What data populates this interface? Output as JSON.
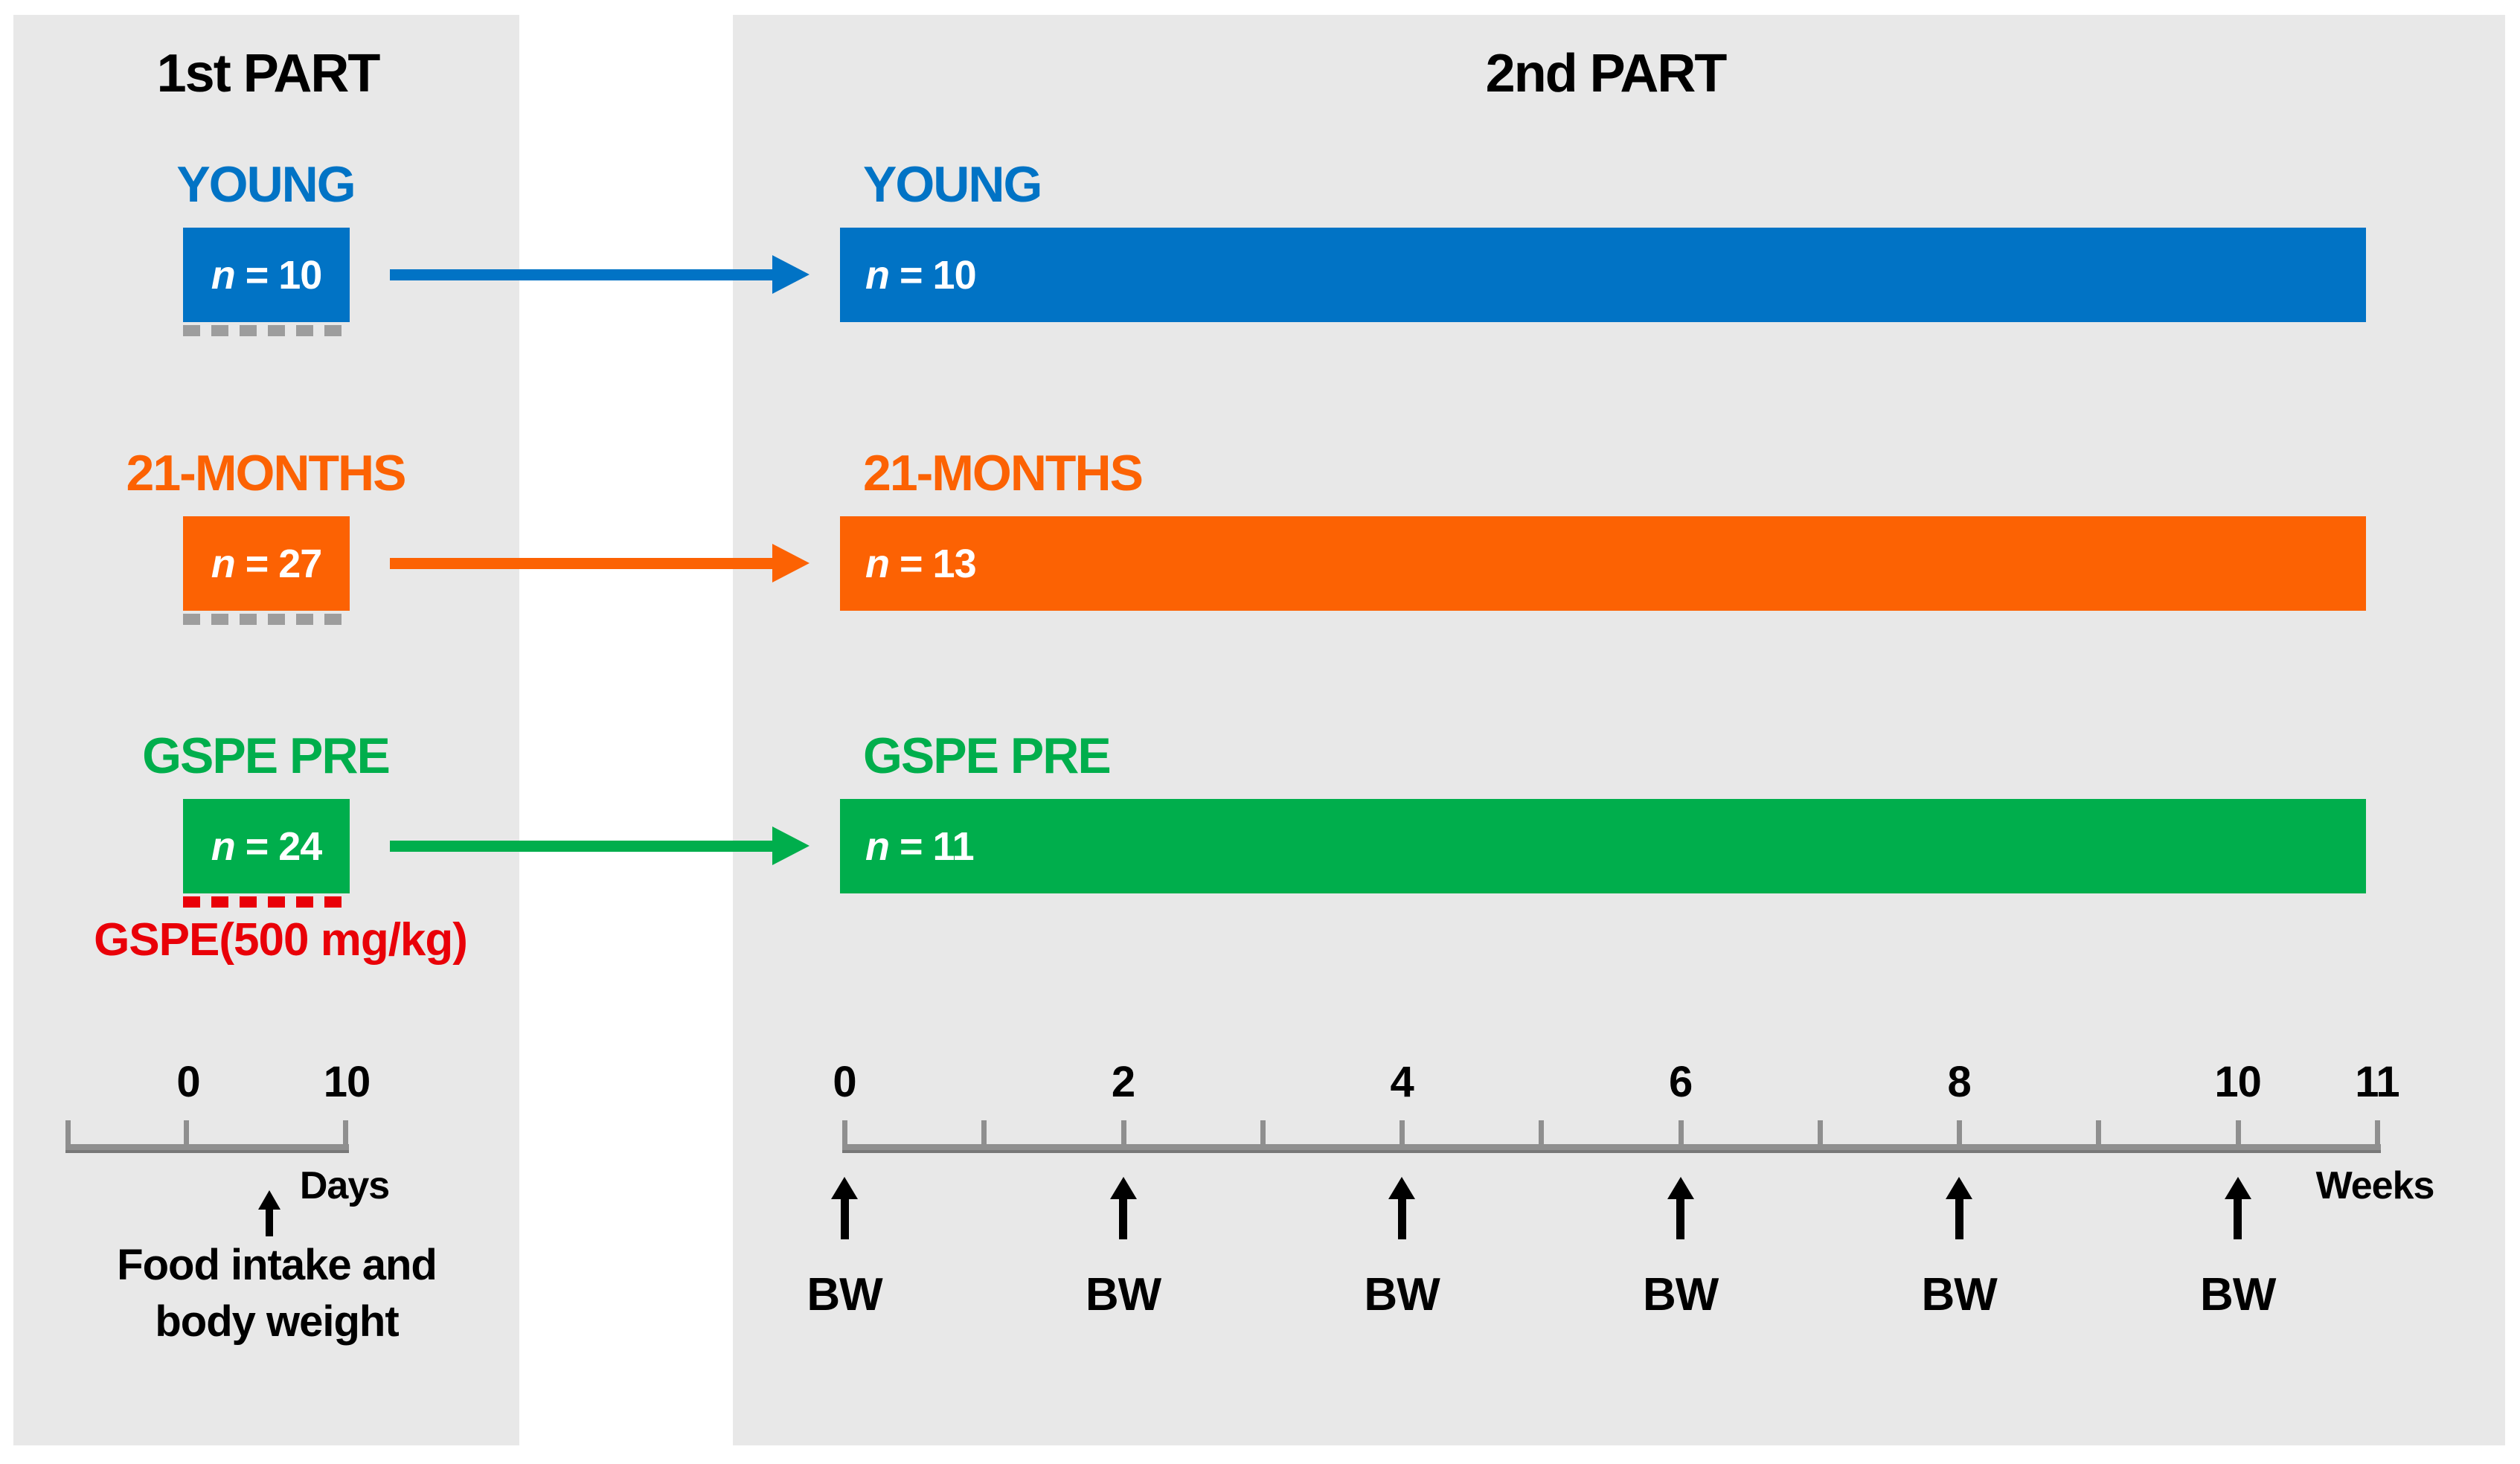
{
  "figure": {
    "type": "experimental-design-diagram",
    "part1": {
      "title": "1st PART",
      "timeline": {
        "tick_labels": [
          "0",
          "10"
        ],
        "unit": "Days",
        "annotation_lines": [
          "Food intake and",
          "body weight"
        ]
      }
    },
    "part2": {
      "title": "2nd PART",
      "timeline": {
        "axis_start_week": 0,
        "axis_end_week": 11,
        "tick_every": 1,
        "tick_labels": [
          {
            "week": 0,
            "label": "0"
          },
          {
            "week": 2,
            "label": "2"
          },
          {
            "week": 4,
            "label": "4"
          },
          {
            "week": 6,
            "label": "6"
          },
          {
            "week": 8,
            "label": "8"
          },
          {
            "week": 10,
            "label": "10"
          },
          {
            "week": 11,
            "label": "11"
          }
        ],
        "unit": "Weeks",
        "bw_markers": [
          {
            "week": 0,
            "label": "BW"
          },
          {
            "week": 2,
            "label": "BW"
          },
          {
            "week": 4,
            "label": "BW"
          },
          {
            "week": 6,
            "label": "BW"
          },
          {
            "week": 8,
            "label": "BW"
          },
          {
            "week": 10,
            "label": "BW"
          }
        ]
      }
    },
    "groups": [
      {
        "label": "YOUNG",
        "color": "#0173C5",
        "part1_sample": "n = 10",
        "part2_sample": "n = 10",
        "underline_dash_color": "#9D9D9D"
      },
      {
        "label": "21-MONTHS",
        "color": "#FC6203",
        "part1_sample": "n = 27",
        "part2_sample": "n = 13",
        "underline_dash_color": "#9D9D9D"
      },
      {
        "label": "GSPE PRE",
        "color": "#00AE4C",
        "part1_sample": "n = 24",
        "part2_sample": "n = 11",
        "underline_dash_color": "#E90008",
        "treatment_note": "GSPE(500 mg/kg)",
        "treatment_note_color": "#E90008"
      }
    ],
    "colors": {
      "panel_background": "#E8E8E8",
      "axis_gray": "#8F8F8F",
      "dash_gray": "#9D9D9D",
      "treatment_red": "#E90008",
      "text_black": "#000000"
    }
  }
}
